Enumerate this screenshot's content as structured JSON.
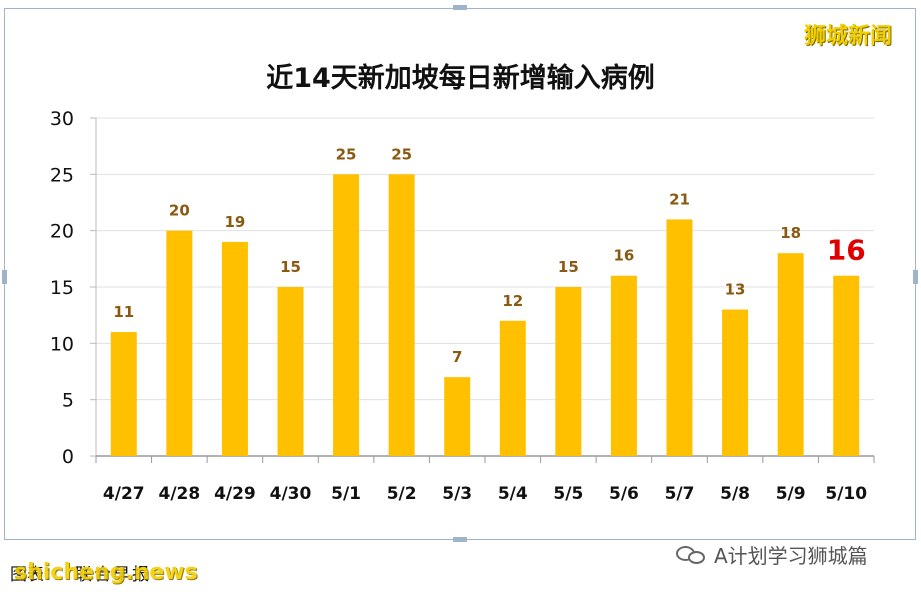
{
  "watermark": "狮城新闻",
  "chart_data": {
    "type": "bar",
    "title": "近14天新加坡每日新增输入病例",
    "xlabel": "",
    "ylabel": "",
    "categories": [
      "4/27",
      "4/28",
      "4/29",
      "4/30",
      "5/1",
      "5/2",
      "5/3",
      "5/4",
      "5/5",
      "5/6",
      "5/7",
      "5/8",
      "5/9",
      "5/10"
    ],
    "values": [
      11,
      20,
      19,
      15,
      25,
      25,
      7,
      12,
      15,
      16,
      21,
      13,
      18,
      16
    ],
    "ylim": [
      0,
      30
    ],
    "yticks": [
      0,
      5,
      10,
      15,
      20,
      25,
      30
    ],
    "grid": true,
    "bar_color": "#ffc000",
    "grid_color": "#e0e0e0",
    "label_color": "#8a5a12",
    "highlight_index": 13,
    "highlight_color": "#e00000"
  },
  "footer": {
    "left_label": "图表：",
    "left_source": "联合早报",
    "overlay_brand": "shicheng.news",
    "right_text": "A计划学习狮城篇"
  }
}
